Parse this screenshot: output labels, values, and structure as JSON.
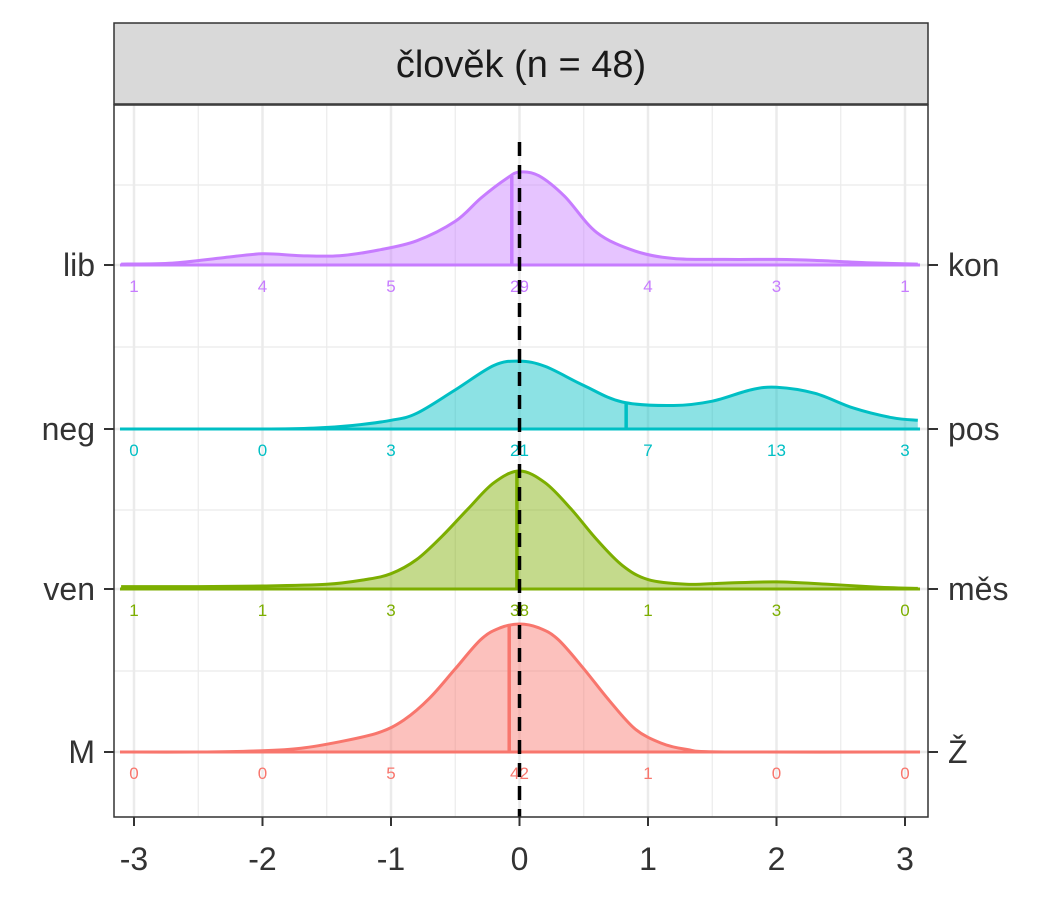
{
  "chart_data": {
    "type": "ridgeline density",
    "title": "člověk (n = 48)",
    "x_ticks": [
      -3,
      -2,
      -1,
      0,
      1,
      2,
      3
    ],
    "xlim": [
      -3.1,
      3.1
    ],
    "reference_line_x": 0,
    "grid": true,
    "series": [
      {
        "name": "M–Ž",
        "left_label": "M",
        "right_label": "Ž",
        "color": "#F8766D",
        "mean": -0.08,
        "counts": [
          0,
          0,
          5,
          42,
          1,
          0,
          0
        ],
        "density": [
          [
            -3.1,
            0
          ],
          [
            -2.5,
            0
          ],
          [
            -2,
            0.01
          ],
          [
            -1.7,
            0.03
          ],
          [
            -1.4,
            0.08
          ],
          [
            -1.1,
            0.15
          ],
          [
            -0.9,
            0.25
          ],
          [
            -0.7,
            0.42
          ],
          [
            -0.5,
            0.65
          ],
          [
            -0.3,
            0.88
          ],
          [
            -0.15,
            0.97
          ],
          [
            0,
            1.0
          ],
          [
            0.15,
            0.97
          ],
          [
            0.3,
            0.88
          ],
          [
            0.5,
            0.65
          ],
          [
            0.7,
            0.4
          ],
          [
            0.9,
            0.18
          ],
          [
            1.1,
            0.07
          ],
          [
            1.3,
            0.02
          ],
          [
            1.6,
            0
          ],
          [
            3.1,
            0
          ]
        ]
      },
      {
        "name": "ven–měs",
        "left_label": "ven",
        "right_label": "měs",
        "color": "#7CAE00",
        "mean": -0.02,
        "counts": [
          1,
          1,
          3,
          38,
          1,
          3,
          0
        ],
        "density": [
          [
            -3.1,
            0.02
          ],
          [
            -2.5,
            0.02
          ],
          [
            -2,
            0.025
          ],
          [
            -1.5,
            0.04
          ],
          [
            -1.2,
            0.08
          ],
          [
            -1,
            0.13
          ],
          [
            -0.8,
            0.25
          ],
          [
            -0.6,
            0.45
          ],
          [
            -0.4,
            0.68
          ],
          [
            -0.2,
            0.9
          ],
          [
            0,
            1.0
          ],
          [
            0.2,
            0.9
          ],
          [
            0.4,
            0.68
          ],
          [
            0.6,
            0.42
          ],
          [
            0.8,
            0.2
          ],
          [
            1,
            0.08
          ],
          [
            1.3,
            0.04
          ],
          [
            1.6,
            0.05
          ],
          [
            2,
            0.06
          ],
          [
            2.4,
            0.04
          ],
          [
            2.8,
            0.015
          ],
          [
            3.1,
            0.005
          ]
        ]
      },
      {
        "name": "neg–pos",
        "left_label": "neg",
        "right_label": "pos",
        "color": "#00BFC4",
        "mean": 0.83,
        "counts": [
          0,
          0,
          3,
          21,
          7,
          13,
          3
        ],
        "density": [
          [
            -3.1,
            0
          ],
          [
            -2.5,
            0
          ],
          [
            -2,
            0
          ],
          [
            -1.6,
            0.01
          ],
          [
            -1.3,
            0.04
          ],
          [
            -1,
            0.1
          ],
          [
            -0.8,
            0.18
          ],
          [
            -0.5,
            0.45
          ],
          [
            -0.2,
            0.73
          ],
          [
            0,
            0.78
          ],
          [
            0.2,
            0.72
          ],
          [
            0.5,
            0.5
          ],
          [
            0.8,
            0.31
          ],
          [
            1.2,
            0.27
          ],
          [
            1.5,
            0.32
          ],
          [
            1.8,
            0.45
          ],
          [
            2,
            0.48
          ],
          [
            2.3,
            0.41
          ],
          [
            2.6,
            0.24
          ],
          [
            2.9,
            0.13
          ],
          [
            3.1,
            0.1
          ]
        ]
      },
      {
        "name": "lib–kon",
        "left_label": "lib",
        "right_label": "kon",
        "color": "#C77CFF",
        "mean": -0.06,
        "counts": [
          1,
          4,
          5,
          29,
          4,
          3,
          1
        ],
        "density": [
          [
            -3.1,
            0.01
          ],
          [
            -2.7,
            0.02
          ],
          [
            -2.3,
            0.08
          ],
          [
            -2,
            0.12
          ],
          [
            -1.7,
            0.1
          ],
          [
            -1.4,
            0.1
          ],
          [
            -1.1,
            0.16
          ],
          [
            -0.8,
            0.26
          ],
          [
            -0.5,
            0.47
          ],
          [
            -0.3,
            0.72
          ],
          [
            -0.1,
            0.93
          ],
          [
            0,
            1.0
          ],
          [
            0.15,
            0.96
          ],
          [
            0.35,
            0.74
          ],
          [
            0.6,
            0.35
          ],
          [
            0.9,
            0.15
          ],
          [
            1.2,
            0.07
          ],
          [
            1.6,
            0.06
          ],
          [
            2,
            0.06
          ],
          [
            2.3,
            0.05
          ],
          [
            2.7,
            0.025
          ],
          [
            3.1,
            0.01
          ]
        ]
      }
    ]
  }
}
